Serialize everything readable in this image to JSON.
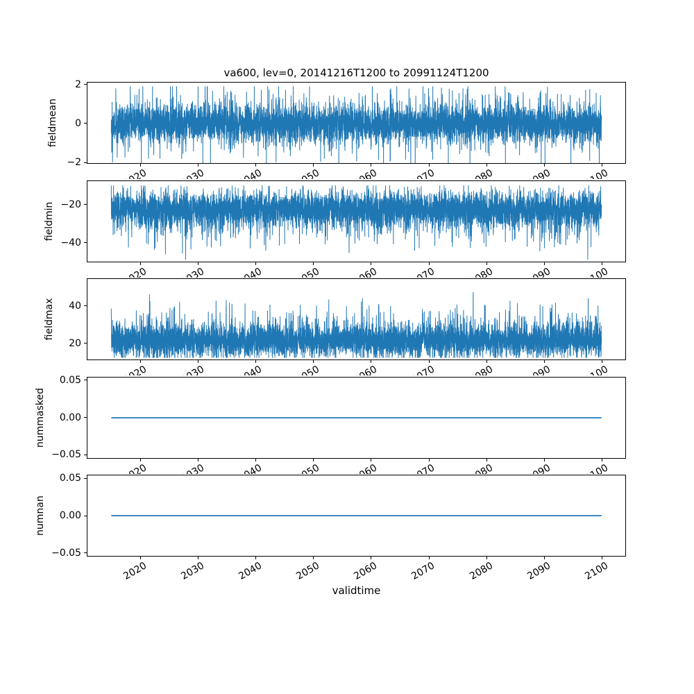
{
  "figure": {
    "title": "va600, lev=0, 20141216T1200 to 20991124T1200",
    "xlabel": "validtime",
    "background_color": "#ffffff",
    "line_color": "#1f77b4",
    "spine_color": "#000000",
    "text_color": "#000000"
  },
  "chart_data": {
    "type": "line",
    "title": "va600, lev=0, 20141216T1200 to 20991124T1200",
    "xlabel": "validtime",
    "legend": "none",
    "grid": false,
    "x_units": "year",
    "x_data_range": [
      2014.96,
      2099.9
    ],
    "xlim": [
      2010.71,
      2104.15
    ],
    "x_ticks": [
      2020,
      2030,
      2040,
      2050,
      2060,
      2070,
      2080,
      2090,
      2100
    ],
    "x_tick_labels": [
      "2020",
      "2030",
      "2040",
      "2050",
      "2060",
      "2070",
      "2080",
      "2090",
      "2100"
    ],
    "x_tick_rotation_deg": 30,
    "series_color": "#1f77b4",
    "subplots": [
      {
        "name": "fieldmean",
        "ylabel": "fieldmean",
        "ylim": [
          -2.07,
          2.14
        ],
        "yticks": [
          {
            "value": 2,
            "label": "2"
          },
          {
            "value": 0,
            "label": "0"
          },
          {
            "value": -2,
            "label": "−2"
          }
        ],
        "summary": {
          "shape": "dense noise band",
          "mean": 0,
          "dense_band": [
            -0.9,
            0.9
          ],
          "min": -2.05,
          "max": 1.9
        },
        "gen": {
          "kind": "noise",
          "n": 6000,
          "base": 0,
          "coreStd": 0.45,
          "wideStd": 0.95,
          "wideProb": 0.15,
          "skew": 0,
          "clip": [
            -2.05,
            1.9
          ],
          "seed": 42
        }
      },
      {
        "name": "fieldmin",
        "ylabel": "fieldmin",
        "ylim": [
          -50,
          -7.1
        ],
        "yticks": [
          {
            "value": -20,
            "label": "−20"
          },
          {
            "value": -40,
            "label": "−40"
          }
        ],
        "summary": {
          "shape": "noise band skewed downward",
          "mean": -22,
          "dense_band": [
            -33,
            -12
          ],
          "min": -48.5,
          "max": -9.8
        },
        "gen": {
          "kind": "noise",
          "n": 6000,
          "base": -21.5,
          "coreStd": 4.4,
          "wideStd": 8,
          "wideProb": 0.16,
          "skew": -1,
          "clip": [
            -48.5,
            -9.8
          ],
          "seed": 7
        }
      },
      {
        "name": "fieldmax",
        "ylabel": "fieldmax",
        "ylim": [
          11.1,
          54.8
        ],
        "yticks": [
          {
            "value": 40,
            "label": "40"
          },
          {
            "value": 20,
            "label": "20"
          }
        ],
        "summary": {
          "shape": "noise band skewed upward",
          "mean": 21,
          "dense_band": [
            13,
            31
          ],
          "min": 12.5,
          "max": 53.5
        },
        "gen": {
          "kind": "noise",
          "n": 6000,
          "base": 21,
          "coreStd": 4.4,
          "wideStd": 8,
          "wideProb": 0.16,
          "skew": 1,
          "clip": [
            12.5,
            53.5
          ],
          "seed": 13
        }
      },
      {
        "name": "nummasked",
        "ylabel": "nummasked",
        "ylim": [
          -0.055,
          0.055
        ],
        "yticks": [
          {
            "value": 0.05,
            "label": "0.05"
          },
          {
            "value": 0,
            "label": "0.00"
          },
          {
            "value": -0.05,
            "label": "−0.05"
          }
        ],
        "summary": {
          "shape": "constant line",
          "value": 0
        },
        "gen": {
          "kind": "flat",
          "value": 0
        }
      },
      {
        "name": "numnan",
        "ylabel": "numnan",
        "ylim": [
          -0.055,
          0.055
        ],
        "yticks": [
          {
            "value": 0.05,
            "label": "0.05"
          },
          {
            "value": 0,
            "label": "0.00"
          },
          {
            "value": -0.05,
            "label": "−0.05"
          }
        ],
        "summary": {
          "shape": "constant line",
          "value": 0
        },
        "gen": {
          "kind": "flat",
          "value": 0
        }
      }
    ]
  }
}
